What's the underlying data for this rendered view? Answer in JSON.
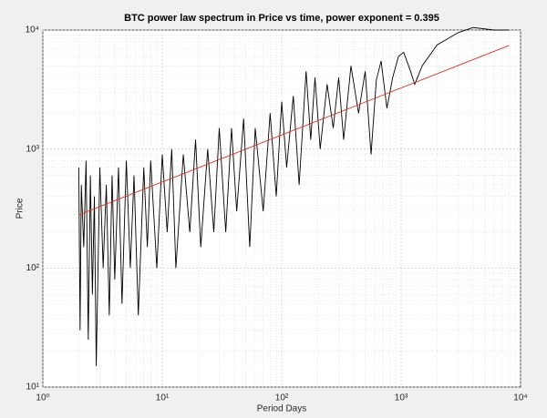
{
  "chart_data": {
    "type": "line",
    "title": "BTC power law spectrum in Price vs time, power exponent = 0.395",
    "x_label": "Period Days",
    "y_label": "Price",
    "x_log": true,
    "y_log": true,
    "grid": true,
    "minor_grid": true,
    "xlim": [
      1,
      10000
    ],
    "ylim": [
      10,
      10000
    ],
    "xticks": [
      {
        "value": 1,
        "label": "10⁰"
      },
      {
        "value": 10,
        "label": "10¹"
      },
      {
        "value": 100,
        "label": "10²"
      },
      {
        "value": 1000,
        "label": "10³"
      },
      {
        "value": 10000,
        "label": "10⁴"
      }
    ],
    "yticks": [
      {
        "value": 10,
        "label": "10¹"
      },
      {
        "value": 100,
        "label": "10²"
      },
      {
        "value": 1000,
        "label": "10³"
      },
      {
        "value": 10000,
        "label": "10⁴"
      }
    ],
    "series": [
      {
        "color": "#000000",
        "x": [
          2,
          2.05,
          2.1,
          2.2,
          2.3,
          2.4,
          2.5,
          2.6,
          2.7,
          2.8,
          3,
          3.2,
          3.4,
          3.6,
          3.8,
          4,
          4.3,
          4.6,
          5,
          5.4,
          5.8,
          6.3,
          7,
          7.5,
          8,
          9,
          10,
          11,
          12,
          13,
          15,
          17,
          19,
          21,
          24,
          27,
          30,
          34,
          38,
          42,
          48,
          54,
          60,
          70,
          80,
          90,
          100,
          110,
          125,
          140,
          160,
          175,
          190,
          210,
          240,
          270,
          300,
          330,
          380,
          440,
          500,
          560,
          620,
          680,
          760,
          850,
          950,
          1050,
          1200,
          1300,
          1500,
          2000,
          3000,
          4000,
          6000,
          8000
        ],
        "values": [
          700,
          30,
          500,
          150,
          800,
          25,
          600,
          60,
          400,
          15,
          700,
          100,
          500,
          40,
          600,
          80,
          700,
          50,
          800,
          100,
          600,
          40,
          700,
          150,
          800,
          100,
          900,
          200,
          1000,
          100,
          900,
          200,
          1200,
          150,
          1000,
          200,
          1500,
          200,
          1500,
          300,
          1800,
          150,
          1500,
          300,
          2000,
          400,
          2500,
          700,
          2800,
          500,
          4500,
          1200,
          4000,
          1000,
          3500,
          1500,
          4000,
          1200,
          5000,
          2000,
          4500,
          900,
          3800,
          5500,
          2200,
          4000,
          6000,
          6500,
          4500,
          3500,
          5000,
          7500,
          9500,
          10500,
          10000,
          10000
        ]
      },
      {
        "color": "#e0301e",
        "x": [
          2,
          8000
        ],
        "values": [
          280,
          7420
        ]
      }
    ]
  }
}
